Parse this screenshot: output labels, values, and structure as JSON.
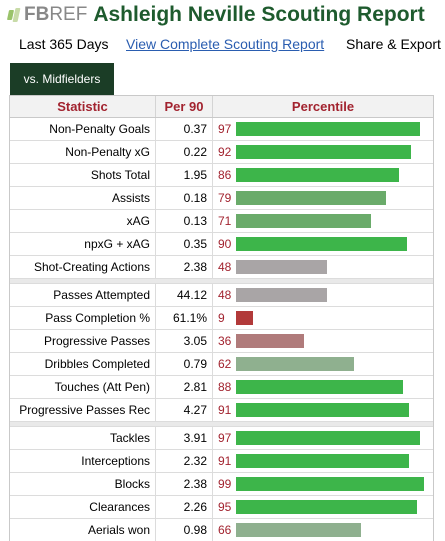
{
  "header": {
    "logo_fb": "FB",
    "logo_ref": "REF",
    "title": "Ashleigh Neville Scouting Report"
  },
  "filters": {
    "period": "Last 365 Days",
    "complete_link": "View Complete Scouting Report",
    "share": "Share & Export"
  },
  "tab": {
    "label": "vs. Midfielders"
  },
  "table": {
    "columns": [
      "Statistic",
      "Per 90",
      "Percentile"
    ],
    "colors": {
      "high": "#3db54a",
      "mid_high": "#6aab6a",
      "mid": "#8fb08f",
      "low": "#a9a5a6",
      "lower": "#b07b7b",
      "lowest": "#b23a3a"
    },
    "groups": [
      [
        {
          "stat": "Non-Penalty Goals",
          "per90": "0.37",
          "pct": "97",
          "level": "high"
        },
        {
          "stat": "Non-Penalty xG",
          "per90": "0.22",
          "pct": "92",
          "level": "high"
        },
        {
          "stat": "Shots Total",
          "per90": "1.95",
          "pct": "86",
          "level": "high"
        },
        {
          "stat": "Assists",
          "per90": "0.18",
          "pct": "79",
          "level": "mid_high"
        },
        {
          "stat": "xAG",
          "per90": "0.13",
          "pct": "71",
          "level": "mid_high"
        },
        {
          "stat": "npxG + xAG",
          "per90": "0.35",
          "pct": "90",
          "level": "high"
        },
        {
          "stat": "Shot-Creating Actions",
          "per90": "2.38",
          "pct": "48",
          "level": "low"
        }
      ],
      [
        {
          "stat": "Passes Attempted",
          "per90": "44.12",
          "pct": "48",
          "level": "low"
        },
        {
          "stat": "Pass Completion %",
          "per90": "61.1%",
          "pct": "9",
          "level": "lowest"
        },
        {
          "stat": "Progressive Passes",
          "per90": "3.05",
          "pct": "36",
          "level": "lower"
        },
        {
          "stat": "Dribbles Completed",
          "per90": "0.79",
          "pct": "62",
          "level": "mid"
        },
        {
          "stat": "Touches (Att Pen)",
          "per90": "2.81",
          "pct": "88",
          "level": "high"
        },
        {
          "stat": "Progressive Passes Rec",
          "per90": "4.27",
          "pct": "91",
          "level": "high"
        }
      ],
      [
        {
          "stat": "Tackles",
          "per90": "3.91",
          "pct": "97",
          "level": "high"
        },
        {
          "stat": "Interceptions",
          "per90": "2.32",
          "pct": "91",
          "level": "high"
        },
        {
          "stat": "Blocks",
          "per90": "2.38",
          "pct": "99",
          "level": "high"
        },
        {
          "stat": "Clearances",
          "per90": "2.26",
          "pct": "95",
          "level": "high"
        },
        {
          "stat": "Aerials won",
          "per90": "0.98",
          "pct": "66",
          "level": "mid"
        }
      ]
    ]
  }
}
